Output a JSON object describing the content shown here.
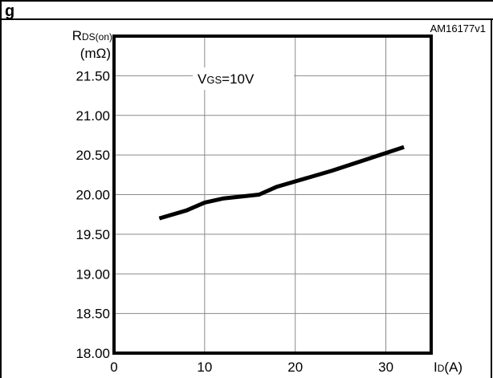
{
  "figure_code": "AM16177v1",
  "heading_fragment": "g",
  "chart_data": {
    "type": "line",
    "title": "",
    "annotation": "VGS=10V",
    "annotation_parts": {
      "main": "V",
      "sub": "GS",
      "rest": "=10V"
    },
    "ylabel": "RDS(on)",
    "ylabel_parts": {
      "main": "R",
      "sub": "DS(on)"
    },
    "yunit": "(mΩ)",
    "xlabel": "ID(A)",
    "xlabel_parts": {
      "main": "I",
      "sub": "D",
      "rest": "(A)"
    },
    "xlim": [
      0,
      35
    ],
    "ylim": [
      18.0,
      22.0
    ],
    "xticks": [
      0,
      10,
      20,
      30
    ],
    "yticks": [
      18.0,
      18.5,
      19.0,
      19.5,
      20.0,
      20.5,
      21.0,
      21.5
    ],
    "grid": true,
    "series": [
      {
        "x": [
          5,
          8,
          10,
          12,
          16,
          18,
          24,
          28,
          32
        ],
        "y": [
          19.7,
          19.8,
          19.9,
          19.95,
          20.0,
          20.1,
          20.3,
          20.45,
          20.6
        ]
      }
    ]
  }
}
